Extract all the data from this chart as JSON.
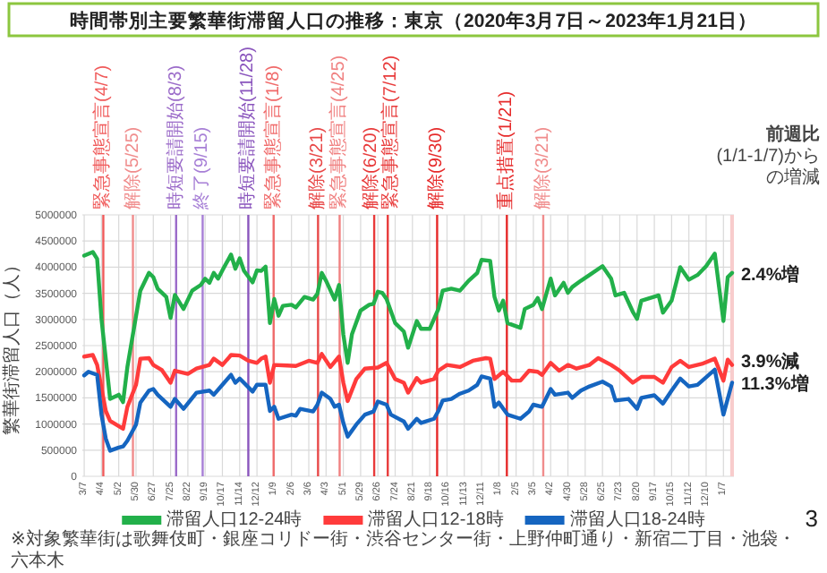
{
  "chart_data": {
    "type": "line",
    "title": "時間帯別主要繁華街滞留人口の推移：東京（2020年3月7日～2023年1月21日）",
    "ylabel": "繁華街滞留人口（人）",
    "xlim": [
      "2020-03-04",
      "2023-01-24"
    ],
    "ylim": [
      0,
      5000000
    ],
    "yticks": [
      0,
      500000,
      1000000,
      1500000,
      2000000,
      2500000,
      3000000,
      3500000,
      4000000,
      4500000,
      5000000
    ],
    "grid": true,
    "legend": "bottom",
    "xticks": [
      {
        "value": "2020-03-07",
        "label": "3/7"
      },
      {
        "value": "2020-04-04",
        "label": "4/4"
      },
      {
        "value": "2020-05-02",
        "label": "5/2"
      },
      {
        "value": "2020-05-30",
        "label": "5/30"
      },
      {
        "value": "2020-06-27",
        "label": "6/27"
      },
      {
        "value": "2020-07-25",
        "label": "7/25"
      },
      {
        "value": "2020-08-22",
        "label": "8/22"
      },
      {
        "value": "2020-09-19",
        "label": "9/19"
      },
      {
        "value": "2020-10-17",
        "label": "10/17"
      },
      {
        "value": "2020-11-14",
        "label": "11/14"
      },
      {
        "value": "2020-12-12",
        "label": "12/12"
      },
      {
        "value": "2021-01-09",
        "label": "1/9"
      },
      {
        "value": "2021-02-06",
        "label": "2/6"
      },
      {
        "value": "2021-03-06",
        "label": "3/6"
      },
      {
        "value": "2021-04-03",
        "label": "4/3"
      },
      {
        "value": "2021-05-01",
        "label": "5/1"
      },
      {
        "value": "2021-05-29",
        "label": "5/29"
      },
      {
        "value": "2021-06-26",
        "label": "6/26"
      },
      {
        "value": "2021-07-24",
        "label": "7/24"
      },
      {
        "value": "2021-08-21",
        "label": "8/21"
      },
      {
        "value": "2021-09-18",
        "label": "9/18"
      },
      {
        "value": "2021-10-16",
        "label": "10/16"
      },
      {
        "value": "2021-11-13",
        "label": "11/13"
      },
      {
        "value": "2021-12-11",
        "label": "12/11"
      },
      {
        "value": "2022-01-08",
        "label": "1/8"
      },
      {
        "value": "2022-02-05",
        "label": "2/5"
      },
      {
        "value": "2022-03-05",
        "label": "3/5"
      },
      {
        "value": "2022-04-02",
        "label": "4/2"
      },
      {
        "value": "2022-04-30",
        "label": "4/30"
      },
      {
        "value": "2022-05-28",
        "label": "5/28"
      },
      {
        "value": "2022-06-25",
        "label": "6/25"
      },
      {
        "value": "2022-07-23",
        "label": "7/23"
      },
      {
        "value": "2022-08-20",
        "label": "8/20"
      },
      {
        "value": "2022-09-17",
        "label": "9/17"
      },
      {
        "value": "2022-10-15",
        "label": "10/15"
      },
      {
        "value": "2022-11-12",
        "label": "11/12"
      },
      {
        "value": "2022-12-10",
        "label": "12/10"
      },
      {
        "value": "2023-01-07",
        "label": "1/7"
      }
    ],
    "series": [
      {
        "name": "滞留人口12-24時",
        "color": "#22b04a",
        "x": [
          "2020-03-07",
          "2020-03-21",
          "2020-03-28",
          "2020-04-04",
          "2020-04-18",
          "2020-05-02",
          "2020-05-09",
          "2020-05-16",
          "2020-06-06",
          "2020-06-20",
          "2020-06-27",
          "2020-07-04",
          "2020-07-18",
          "2020-07-25",
          "2020-08-01",
          "2020-08-15",
          "2020-08-29",
          "2020-09-12",
          "2020-09-19",
          "2020-09-26",
          "2020-10-03",
          "2020-10-10",
          "2020-10-17",
          "2020-10-31",
          "2020-11-07",
          "2020-11-14",
          "2020-11-21",
          "2020-12-05",
          "2020-12-12",
          "2020-12-19",
          "2020-12-26",
          "2021-01-02",
          "2021-01-09",
          "2021-01-16",
          "2021-01-23",
          "2021-02-06",
          "2021-02-13",
          "2021-02-27",
          "2021-03-13",
          "2021-03-20",
          "2021-03-27",
          "2021-04-03",
          "2021-04-17",
          "2021-04-24",
          "2021-05-01",
          "2021-05-08",
          "2021-05-15",
          "2021-05-29",
          "2021-06-12",
          "2021-06-19",
          "2021-06-26",
          "2021-07-03",
          "2021-07-10",
          "2021-07-24",
          "2021-08-07",
          "2021-08-14",
          "2021-08-28",
          "2021-09-04",
          "2021-09-18",
          "2021-10-02",
          "2021-10-09",
          "2021-10-23",
          "2021-11-06",
          "2021-11-20",
          "2021-12-04",
          "2021-12-11",
          "2021-12-25",
          "2022-01-01",
          "2022-01-08",
          "2022-01-15",
          "2022-01-22",
          "2022-02-12",
          "2022-02-19",
          "2022-03-05",
          "2022-03-12",
          "2022-03-19",
          "2022-04-02",
          "2022-04-09",
          "2022-04-23",
          "2022-04-30",
          "2022-05-07",
          "2022-05-21",
          "2022-06-04",
          "2022-06-25",
          "2022-07-09",
          "2022-07-16",
          "2022-07-30",
          "2022-08-13",
          "2022-08-20",
          "2022-08-27",
          "2022-09-10",
          "2022-09-24",
          "2022-10-01",
          "2022-10-15",
          "2022-10-29",
          "2022-11-12",
          "2022-11-26",
          "2022-12-10",
          "2022-12-24",
          "2023-01-07",
          "2023-01-14",
          "2023-01-21"
        ],
        "values": [
          4220000,
          4290000,
          4160000,
          3010000,
          1480000,
          1560000,
          1420000,
          2090000,
          3550000,
          3890000,
          3810000,
          3590000,
          3430000,
          3030000,
          3470000,
          3200000,
          3550000,
          3660000,
          3780000,
          3700000,
          3890000,
          3780000,
          3940000,
          4240000,
          3970000,
          4170000,
          3930000,
          3710000,
          3940000,
          3930000,
          4010000,
          2930000,
          3390000,
          3070000,
          3260000,
          3280000,
          3230000,
          3430000,
          3380000,
          3490000,
          3890000,
          3740000,
          3380000,
          3660000,
          2710000,
          2170000,
          2720000,
          3170000,
          3280000,
          3300000,
          3530000,
          3510000,
          3390000,
          2930000,
          2770000,
          2460000,
          2970000,
          2820000,
          2820000,
          3200000,
          3550000,
          3590000,
          3550000,
          3740000,
          3890000,
          4140000,
          4120000,
          3430000,
          3170000,
          3360000,
          2930000,
          2840000,
          3200000,
          3280000,
          3410000,
          3200000,
          3780000,
          3460000,
          3700000,
          3510000,
          3620000,
          3740000,
          3850000,
          4020000,
          3780000,
          3460000,
          3510000,
          3150000,
          3010000,
          3360000,
          3410000,
          3460000,
          3130000,
          3360000,
          4000000,
          3760000,
          3850000,
          4020000,
          4260000,
          2970000,
          3810000,
          3890000
        ]
      },
      {
        "name": "滞留人口12-18時",
        "color": "#ff3b3b",
        "x": [
          "2020-03-07",
          "2020-03-21",
          "2020-03-28",
          "2020-04-11",
          "2020-04-18",
          "2020-05-09",
          "2020-05-16",
          "2020-05-30",
          "2020-06-06",
          "2020-06-20",
          "2020-06-27",
          "2020-07-11",
          "2020-07-25",
          "2020-08-01",
          "2020-08-22",
          "2020-09-05",
          "2020-09-26",
          "2020-10-03",
          "2020-10-17",
          "2020-10-31",
          "2020-11-14",
          "2020-11-28",
          "2020-12-12",
          "2020-12-19",
          "2020-12-26",
          "2021-01-02",
          "2021-01-09",
          "2021-01-30",
          "2021-02-13",
          "2021-03-06",
          "2021-03-20",
          "2021-03-27",
          "2021-04-10",
          "2021-04-24",
          "2021-05-01",
          "2021-05-08",
          "2021-05-22",
          "2021-06-05",
          "2021-06-26",
          "2021-07-10",
          "2021-07-24",
          "2021-08-07",
          "2021-08-14",
          "2021-08-28",
          "2021-09-04",
          "2021-09-25",
          "2021-10-02",
          "2021-10-16",
          "2021-11-06",
          "2021-11-27",
          "2021-12-18",
          "2021-12-25",
          "2022-01-01",
          "2022-01-15",
          "2022-01-29",
          "2022-02-12",
          "2022-02-26",
          "2022-03-12",
          "2022-03-19",
          "2022-04-02",
          "2022-04-16",
          "2022-04-30",
          "2022-05-14",
          "2022-06-04",
          "2022-06-18",
          "2022-07-09",
          "2022-07-23",
          "2022-08-13",
          "2022-08-27",
          "2022-09-17",
          "2022-10-01",
          "2022-10-15",
          "2022-10-29",
          "2022-11-12",
          "2022-12-03",
          "2022-12-24",
          "2023-01-07",
          "2023-01-14",
          "2023-01-21"
        ],
        "values": [
          2290000,
          2320000,
          2130000,
          1250000,
          1060000,
          910000,
          1330000,
          1750000,
          2250000,
          2260000,
          2130000,
          2030000,
          1790000,
          2020000,
          1960000,
          2060000,
          2130000,
          2250000,
          2130000,
          2320000,
          2310000,
          2210000,
          2170000,
          2250000,
          2290000,
          1790000,
          2130000,
          2120000,
          2110000,
          2210000,
          2170000,
          2340000,
          2090000,
          2290000,
          1790000,
          1440000,
          1860000,
          2060000,
          2080000,
          2170000,
          1860000,
          1790000,
          1600000,
          1880000,
          1790000,
          1860000,
          2020000,
          2130000,
          2090000,
          2210000,
          2260000,
          2250000,
          1860000,
          2000000,
          1830000,
          1830000,
          2020000,
          2000000,
          1940000,
          2170000,
          2020000,
          2130000,
          2060000,
          2130000,
          2260000,
          2130000,
          2020000,
          1790000,
          1900000,
          1900000,
          1790000,
          2090000,
          2210000,
          2090000,
          2150000,
          2250000,
          1830000,
          2230000,
          2130000
        ]
      },
      {
        "name": "滞留人口18-24時",
        "color": "#1565c0",
        "x": [
          "2020-03-07",
          "2020-03-14",
          "2020-03-28",
          "2020-04-04",
          "2020-04-11",
          "2020-04-18",
          "2020-05-02",
          "2020-05-09",
          "2020-05-16",
          "2020-05-30",
          "2020-06-06",
          "2020-06-20",
          "2020-06-27",
          "2020-07-04",
          "2020-07-25",
          "2020-08-01",
          "2020-08-15",
          "2020-09-05",
          "2020-09-26",
          "2020-10-03",
          "2020-10-17",
          "2020-10-31",
          "2020-11-07",
          "2020-11-14",
          "2020-12-05",
          "2020-12-12",
          "2020-12-26",
          "2021-01-02",
          "2021-01-09",
          "2021-01-16",
          "2021-02-06",
          "2021-02-13",
          "2021-02-20",
          "2021-03-13",
          "2021-03-20",
          "2021-03-27",
          "2021-04-10",
          "2021-04-17",
          "2021-04-24",
          "2021-05-01",
          "2021-05-08",
          "2021-05-22",
          "2021-06-05",
          "2021-06-19",
          "2021-06-26",
          "2021-07-10",
          "2021-07-17",
          "2021-08-07",
          "2021-08-14",
          "2021-08-28",
          "2021-09-04",
          "2021-09-25",
          "2021-10-02",
          "2021-10-09",
          "2021-10-23",
          "2021-11-06",
          "2021-11-20",
          "2021-12-04",
          "2021-12-11",
          "2021-12-25",
          "2022-01-01",
          "2022-01-08",
          "2022-01-22",
          "2022-02-12",
          "2022-02-26",
          "2022-03-05",
          "2022-03-19",
          "2022-04-02",
          "2022-04-09",
          "2022-04-30",
          "2022-05-07",
          "2022-05-21",
          "2022-06-04",
          "2022-06-25",
          "2022-07-09",
          "2022-07-16",
          "2022-08-06",
          "2022-08-20",
          "2022-08-27",
          "2022-09-17",
          "2022-10-01",
          "2022-10-15",
          "2022-10-29",
          "2022-11-12",
          "2022-11-26",
          "2022-12-24",
          "2023-01-07",
          "2023-01-21"
        ],
        "values": [
          1930000,
          2000000,
          1940000,
          1180000,
          720000,
          490000,
          550000,
          570000,
          680000,
          990000,
          1410000,
          1640000,
          1670000,
          1560000,
          1330000,
          1480000,
          1290000,
          1600000,
          1640000,
          1560000,
          1750000,
          1940000,
          1790000,
          1870000,
          1620000,
          1750000,
          1750000,
          1250000,
          1330000,
          1100000,
          1180000,
          1160000,
          1290000,
          1240000,
          1370000,
          1600000,
          1480000,
          1330000,
          1370000,
          1020000,
          760000,
          990000,
          1180000,
          1240000,
          1430000,
          1370000,
          1180000,
          1050000,
          910000,
          1100000,
          1020000,
          1100000,
          1250000,
          1450000,
          1480000,
          1580000,
          1640000,
          1750000,
          1910000,
          1870000,
          1330000,
          1410000,
          1180000,
          1100000,
          1240000,
          1370000,
          1330000,
          1670000,
          1560000,
          1600000,
          1500000,
          1640000,
          1720000,
          1810000,
          1720000,
          1450000,
          1480000,
          1290000,
          1500000,
          1550000,
          1390000,
          1640000,
          1870000,
          1720000,
          1750000,
          2040000,
          1180000,
          1790000
        ]
      }
    ],
    "ref_lines": [
      {
        "axis": "x",
        "value": "2020-04-07",
        "label": "緊急事態宣言(4/7)",
        "color": "#f05a5a"
      },
      {
        "axis": "x",
        "value": "2020-05-25",
        "label": "解除(5/25)",
        "color": "#f08c8c"
      },
      {
        "axis": "x",
        "value": "2020-08-03",
        "label": "時短要請開始(8/3)",
        "color": "#9b6bc9"
      },
      {
        "axis": "x",
        "value": "2020-09-15",
        "label": "終了(9/15)",
        "color": "#a77fd6"
      },
      {
        "axis": "x",
        "value": "2020-11-28",
        "label": "時短要請開始(11/28)",
        "color": "#8a55bd"
      },
      {
        "axis": "x",
        "value": "2021-01-08",
        "label": "緊急事態宣言(1/8)",
        "color": "#f06a6a"
      },
      {
        "axis": "x",
        "value": "2021-03-21",
        "label": "解除(3/21)",
        "color": "#e84848"
      },
      {
        "axis": "x",
        "value": "2021-04-25",
        "label": "緊急事態宣言(4/25)",
        "color": "#f08080"
      },
      {
        "axis": "x",
        "value": "2021-06-20",
        "label": "解除(6/20)",
        "color": "#e83a3a"
      },
      {
        "axis": "x",
        "value": "2021-07-12",
        "label": "緊急事態宣言(7/12)",
        "color": "#e83a3a"
      },
      {
        "axis": "x",
        "value": "2021-09-30",
        "label": "解除(9/30)",
        "color": "#e62a2a"
      },
      {
        "axis": "x",
        "value": "2022-01-21",
        "label": "重点措置(1/21)",
        "color": "#e62a2a"
      },
      {
        "axis": "x",
        "value": "2022-03-21",
        "label": "解除(3/21)",
        "color": "#f08c8c"
      }
    ],
    "bands": [
      {
        "axis": "x",
        "from": "2023-01-18",
        "to": "2023-01-24",
        "color": "#f8cccc"
      }
    ],
    "annotations": [
      "前週比",
      "(1/1-1/7)からの増減",
      "※対象繁華街は歌舞伎町・銀座コリドー街・渋谷センター街・上野仲町通り・新宿二丁目・池袋・六本木",
      "3",
      {
        "text": "2.4%増",
        "x": "2023-01-21",
        "y": 3890000
      },
      {
        "text": "3.9%減",
        "x": "2023-01-21",
        "y": 2230000
      },
      {
        "text": "11.3%増",
        "x": "2023-01-21",
        "y": 1790000
      }
    ]
  }
}
